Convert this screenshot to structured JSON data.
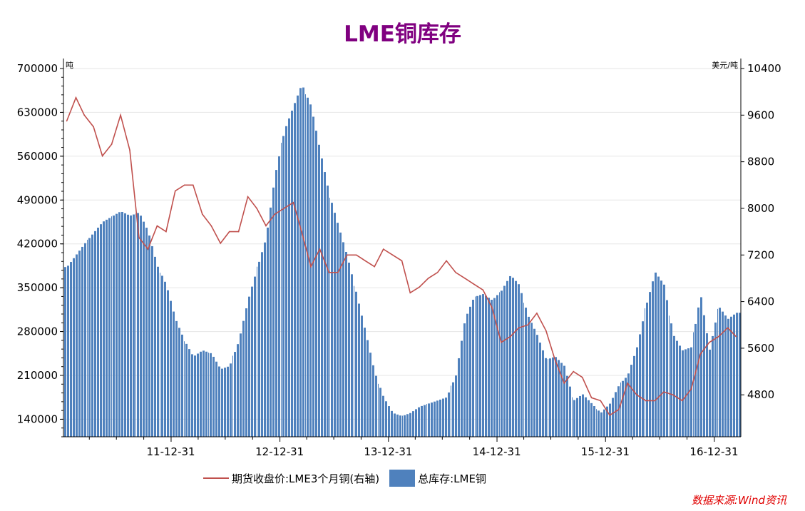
{
  "chart_data": {
    "type": "bar+line",
    "title": "LME铜库存",
    "left_axis": {
      "unit": "吨",
      "ticks": [
        "700000",
        "630000",
        "560000",
        "490000",
        "420000",
        "350000",
        "280000",
        "210000",
        "140000"
      ],
      "ylim": [
        112000,
        700000
      ]
    },
    "right_axis": {
      "unit": "美元/吨",
      "ticks": [
        "10400",
        "9600",
        "8800",
        "8000",
        "7200",
        "6400",
        "5600",
        "4800"
      ],
      "ylim": [
        4080,
        10400
      ]
    },
    "x_axis": {
      "tick_labels": [
        "11-12-31",
        "12-12-31",
        "13-12-31",
        "14-12-31",
        "15-12-31",
        "16-12-31"
      ],
      "range": [
        "2011-01-04",
        "2017-03-31"
      ]
    },
    "series": [
      {
        "name": "总库存:LME铜",
        "type": "bar",
        "axis": "left",
        "color": "#4f81bd",
        "x": [
          "2011-01",
          "2011-03",
          "2011-05",
          "2011-07",
          "2011-08",
          "2011-09",
          "2011-10",
          "2011-11",
          "2011-12",
          "2012-01",
          "2012-02",
          "2012-03",
          "2012-04",
          "2012-05",
          "2012-06",
          "2012-07",
          "2012-08",
          "2012-09",
          "2012-10",
          "2012-11",
          "2012-12",
          "2013-01",
          "2013-02",
          "2013-03",
          "2013-04",
          "2013-05",
          "2013-06",
          "2013-07",
          "2013-08",
          "2013-09",
          "2013-10",
          "2013-11",
          "2013-12",
          "2014-01",
          "2014-02",
          "2014-03",
          "2014-04",
          "2014-05",
          "2014-06",
          "2014-07",
          "2014-08",
          "2014-09",
          "2014-10",
          "2014-11",
          "2014-12",
          "2015-01",
          "2015-02",
          "2015-03",
          "2015-04",
          "2015-05",
          "2015-06",
          "2015-07",
          "2015-08",
          "2015-09",
          "2015-10",
          "2015-11",
          "2015-12",
          "2016-01",
          "2016-02",
          "2016-03",
          "2016-04",
          "2016-05",
          "2016-06",
          "2016-07",
          "2016-08",
          "2016-09",
          "2016-10",
          "2016-11",
          "2016-12",
          "2017-01",
          "2017-02",
          "2017-03"
        ],
        "values": [
          383000,
          420000,
          455000,
          472000,
          465000,
          470000,
          440000,
          385000,
          355000,
          300000,
          265000,
          240000,
          250000,
          245000,
          220000,
          225000,
          265000,
          330000,
          380000,
          430000,
          530000,
          600000,
          640000,
          675000,
          640000,
          570000,
          500000,
          450000,
          400000,
          340000,
          280000,
          215000,
          175000,
          150000,
          145000,
          150000,
          160000,
          165000,
          170000,
          175000,
          210000,
          300000,
          335000,
          340000,
          330000,
          345000,
          370000,
          355000,
          305000,
          275000,
          235000,
          240000,
          225000,
          170000,
          180000,
          165000,
          150000,
          165000,
          195000,
          210000,
          255000,
          320000,
          375000,
          355000,
          275000,
          250000,
          255000,
          340000,
          250000,
          320000,
          300000,
          310000
        ]
      },
      {
        "name": "期货收盘价:LME3个月铜(右轴)",
        "type": "line",
        "axis": "right",
        "color": "#c0504d",
        "x": [
          "2011-01",
          "2011-02",
          "2011-03",
          "2011-04",
          "2011-05",
          "2011-06",
          "2011-07",
          "2011-08",
          "2011-09",
          "2011-10",
          "2011-11",
          "2011-12",
          "2012-01",
          "2012-02",
          "2012-03",
          "2012-04",
          "2012-05",
          "2012-06",
          "2012-07",
          "2012-08",
          "2012-09",
          "2012-10",
          "2012-11",
          "2012-12",
          "2013-01",
          "2013-02",
          "2013-03",
          "2013-04",
          "2013-05",
          "2013-06",
          "2013-07",
          "2013-08",
          "2013-09",
          "2013-10",
          "2013-11",
          "2013-12",
          "2014-01",
          "2014-02",
          "2014-03",
          "2014-04",
          "2014-05",
          "2014-06",
          "2014-07",
          "2014-08",
          "2014-09",
          "2014-10",
          "2014-11",
          "2014-12",
          "2015-01",
          "2015-02",
          "2015-03",
          "2015-04",
          "2015-05",
          "2015-06",
          "2015-07",
          "2015-08",
          "2015-09",
          "2015-10",
          "2015-11",
          "2015-12",
          "2016-01",
          "2016-02",
          "2016-03",
          "2016-04",
          "2016-05",
          "2016-06",
          "2016-07",
          "2016-08",
          "2016-09",
          "2016-10",
          "2016-11",
          "2016-12",
          "2017-01",
          "2017-02",
          "2017-03"
        ],
        "values": [
          9500,
          9900,
          9600,
          9400,
          8900,
          9100,
          9600,
          9000,
          7500,
          7300,
          7700,
          7600,
          8300,
          8400,
          8400,
          7900,
          7700,
          7400,
          7600,
          7600,
          8200,
          8000,
          7700,
          7900,
          8000,
          8100,
          7600,
          7000,
          7300,
          6900,
          6900,
          7200,
          7200,
          7100,
          7000,
          7300,
          7200,
          7100,
          6550,
          6650,
          6800,
          6900,
          7100,
          6900,
          6800,
          6700,
          6600,
          6300,
          5700,
          5800,
          5950,
          6000,
          6200,
          5900,
          5400,
          5000,
          5200,
          5100,
          4750,
          4700,
          4450,
          4550,
          5000,
          4800,
          4700,
          4700,
          4850,
          4800,
          4700,
          4900,
          5500,
          5700,
          5800,
          5950,
          5800
        ]
      }
    ],
    "legend_position": "bottom",
    "grid": "horizontal"
  },
  "source_note": "数据来源:Wind资讯"
}
